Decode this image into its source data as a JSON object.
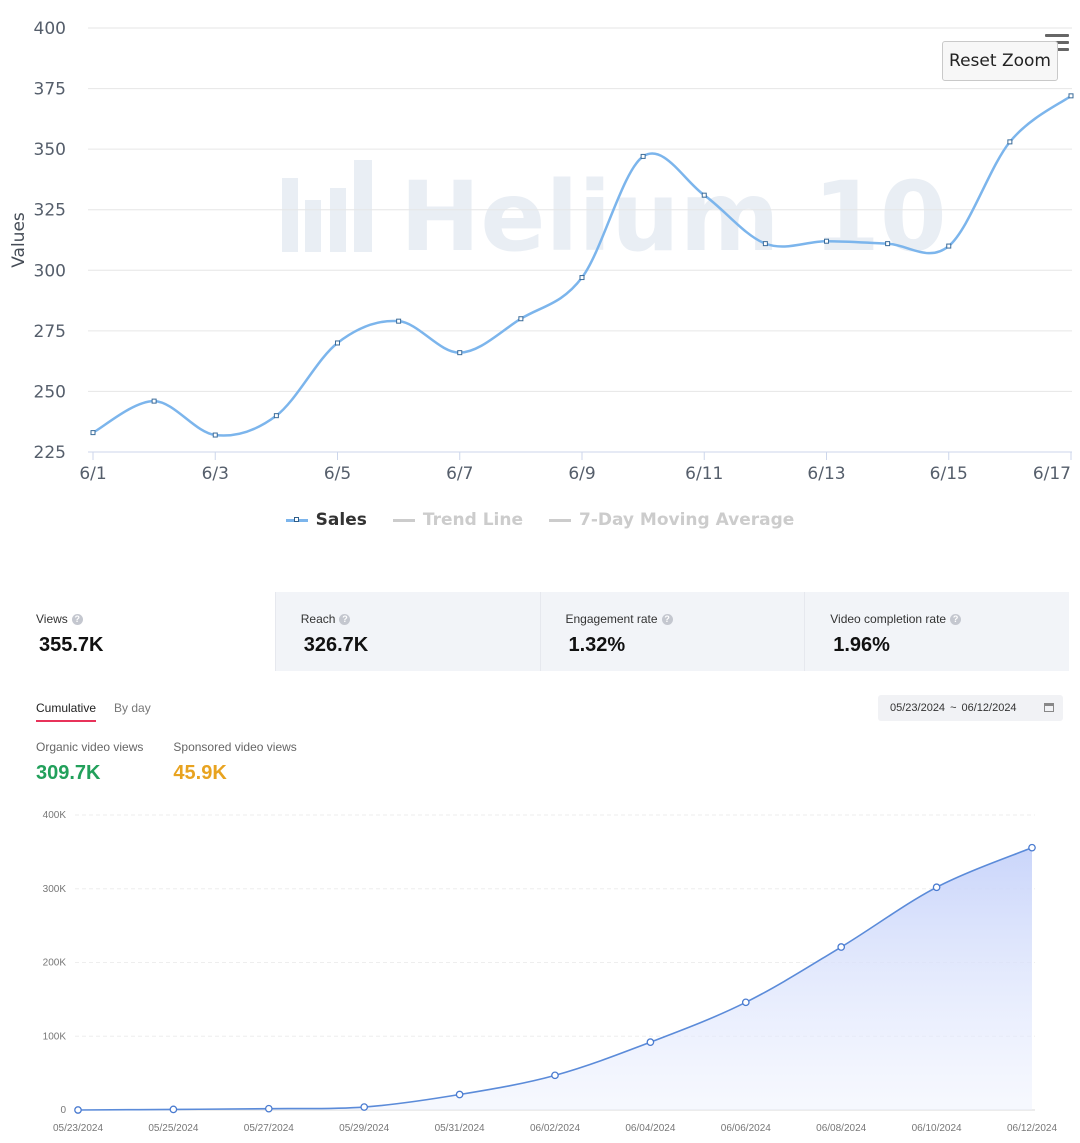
{
  "reset_zoom_label": "Reset Zoom",
  "watermark": "Helium 10",
  "legend": [
    {
      "name": "Sales",
      "color": "#7cb5ec",
      "active": true
    },
    {
      "name": "Trend Line",
      "color": "#cccccc",
      "active": false
    },
    {
      "name": "7-Day Moving Average",
      "color": "#cccccc",
      "active": false
    }
  ],
  "metrics": [
    {
      "label": "Views",
      "value": "355.7K"
    },
    {
      "label": "Reach",
      "value": "326.7K"
    },
    {
      "label": "Engagement rate",
      "value": "1.32%"
    },
    {
      "label": "Video completion rate",
      "value": "1.96%"
    }
  ],
  "tabs": [
    "Cumulative",
    "By day"
  ],
  "date_range": {
    "start": "05/23/2024",
    "sep": "~",
    "end": "06/12/2024"
  },
  "sub_metrics": [
    {
      "label": "Organic video views",
      "value": "309.7K",
      "color": "#22a05b"
    },
    {
      "label": "Sponsored video views",
      "value": "45.9K",
      "color": "#e8a320"
    }
  ],
  "chart_data": [
    {
      "type": "line",
      "title": "",
      "xlabel": "",
      "ylabel": "Values",
      "x": [
        "6/1",
        "6/2",
        "6/3",
        "6/4",
        "6/5",
        "6/6",
        "6/7",
        "6/8",
        "6/9",
        "6/10",
        "6/11",
        "6/12",
        "6/13",
        "6/14",
        "6/15",
        "6/16",
        "6/17"
      ],
      "xticks": [
        "6/1",
        "6/3",
        "6/5",
        "6/7",
        "6/9",
        "6/11",
        "6/13",
        "6/15",
        "6/17"
      ],
      "ylim": [
        225,
        400
      ],
      "yticks": [
        225,
        250,
        275,
        300,
        325,
        350,
        375,
        400
      ],
      "series": [
        {
          "name": "Sales",
          "values": [
            233,
            246,
            232,
            240,
            270,
            279,
            266,
            280,
            297,
            347,
            331,
            311,
            312,
            311,
            310,
            353,
            372
          ]
        }
      ],
      "grid": true,
      "legend": "bottom-center"
    },
    {
      "type": "area",
      "title": "",
      "xlabel": "",
      "ylabel": "",
      "x": [
        "05/23/2024",
        "05/25/2024",
        "05/27/2024",
        "05/29/2024",
        "05/31/2024",
        "06/02/2024",
        "06/04/2024",
        "06/06/2024",
        "06/08/2024",
        "06/10/2024",
        "06/12/2024"
      ],
      "ylim": [
        0,
        400000
      ],
      "yticks": [
        "0",
        "100K",
        "200K",
        "300K",
        "400K"
      ],
      "series": [
        {
          "values": [
            0,
            800,
            1800,
            4000,
            21000,
            47000,
            92000,
            146000,
            221000,
            302000,
            355700
          ]
        }
      ],
      "grid": true
    }
  ]
}
